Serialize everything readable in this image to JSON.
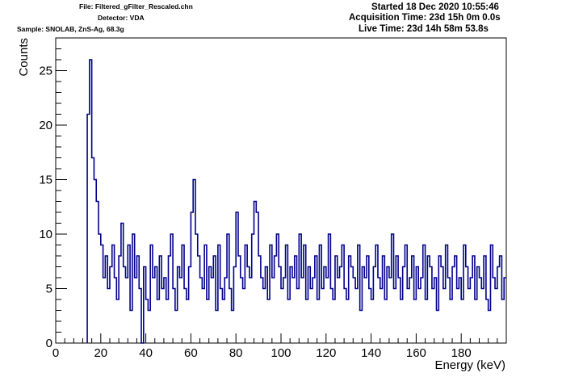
{
  "header": {
    "file": "File: Filtered_gFilter_Rescaled.chn",
    "detector": "Detector: VDA",
    "sample": "Sample: SNOLAB, ZnS-Ag, 68.3g",
    "started": "Started 18 Dec 2020 10:55:46",
    "acquisition_time": "Acquisition Time: 23d 15h 0m 0.0s",
    "live_time": "Live Time: 23d 14h 58m 53.8s"
  },
  "chart_data": {
    "type": "histogram",
    "title": "",
    "xlabel": "Energy (keV)",
    "ylabel": "Counts",
    "xlim": [
      0,
      200
    ],
    "ylim": [
      0,
      28
    ],
    "x_ticks": [
      0,
      20,
      40,
      60,
      80,
      100,
      120,
      140,
      160,
      180
    ],
    "y_ticks": [
      0,
      5,
      10,
      15,
      20,
      25
    ],
    "bin_width": 1,
    "x_start": 14,
    "line_color": "#00008b",
    "values": [
      21,
      26,
      17,
      15,
      13,
      10,
      9,
      6,
      8,
      5,
      7,
      9,
      6,
      4,
      8,
      11,
      7,
      6,
      9,
      3,
      10,
      6,
      8,
      5,
      0,
      7,
      4,
      3,
      9,
      6,
      7,
      4,
      8,
      5,
      6,
      4,
      8,
      10,
      5,
      3,
      7,
      6,
      9,
      5,
      4,
      7,
      12,
      15,
      10,
      8,
      6,
      5,
      9,
      4,
      7,
      6,
      8,
      3,
      9,
      5,
      4,
      6,
      10,
      5,
      3,
      7,
      12,
      8,
      6,
      5,
      9,
      7,
      6,
      10,
      13,
      12,
      8,
      6,
      5,
      7,
      4,
      9,
      6,
      8,
      10,
      7,
      5,
      6,
      9,
      4,
      7,
      6,
      8,
      5,
      10,
      6,
      9,
      4,
      7,
      5,
      6,
      8,
      4,
      9,
      5,
      7,
      6,
      10,
      5,
      4,
      8,
      6,
      7,
      9,
      5,
      4,
      8,
      7,
      6,
      5,
      9,
      3,
      7,
      6,
      8,
      5,
      4,
      7,
      9,
      6,
      5,
      8,
      4,
      7,
      6,
      10,
      5,
      8,
      6,
      4,
      7,
      9,
      5,
      6,
      8,
      4,
      7,
      5,
      6,
      9,
      4,
      8,
      7,
      5,
      6,
      3,
      8,
      7,
      5,
      9,
      6,
      4,
      7,
      8,
      5,
      6,
      4,
      9,
      7,
      5,
      6,
      8,
      4,
      7,
      6,
      5,
      8,
      4,
      3,
      9,
      6,
      5,
      7,
      8,
      4,
      6
    ]
  }
}
